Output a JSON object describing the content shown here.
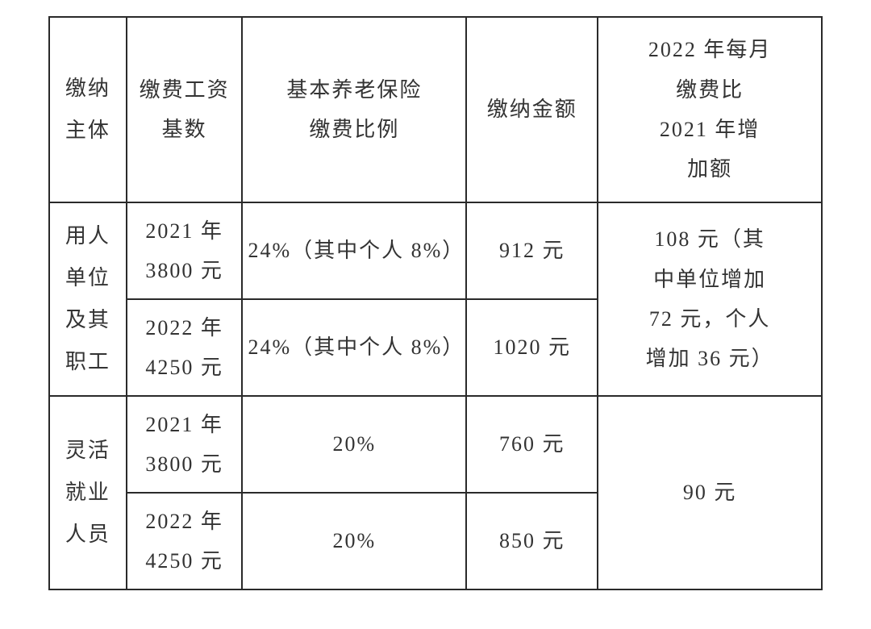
{
  "table": {
    "type": "table",
    "background_color": "#ffffff",
    "border_color": "#2a2a2a",
    "text_color": "#333333",
    "font_family": "SimSun",
    "font_size_pt": 20,
    "columns": [
      {
        "key": "subject",
        "label": "缴纳主体",
        "width_pct": 10
      },
      {
        "key": "base",
        "label": "缴费工资基数",
        "width_pct": 15
      },
      {
        "key": "rate",
        "label": "基本养老保险缴费比例",
        "width_pct": 29
      },
      {
        "key": "amount",
        "label": "缴纳金额",
        "width_pct": 17
      },
      {
        "key": "increase",
        "label": "2022 年每月缴费比2021 年增加额",
        "width_pct": 29
      }
    ],
    "headers": {
      "subject": "缴纳\n主体",
      "base": "缴费工资\n基数",
      "rate": "基本养老保险\n缴费比例",
      "amount": "缴纳金额",
      "increase": "2022 年每月\n缴费比\n2021 年增\n加额"
    },
    "groups": [
      {
        "subject": "用人\n单位\n及其\n职工",
        "rows": [
          {
            "base": "2021 年\n3800 元",
            "rate": "24%（其中个人 8%）",
            "amount": "912 元"
          },
          {
            "base": "2022 年\n4250 元",
            "rate": "24%（其中个人 8%）",
            "amount": "1020 元"
          }
        ],
        "increase": "108 元（其\n中单位增加\n72 元，个人\n增加 36 元）"
      },
      {
        "subject": "灵活\n就业\n人员",
        "rows": [
          {
            "base": "2021 年\n3800 元",
            "rate": "20%",
            "amount": "760 元"
          },
          {
            "base": "2022 年\n4250 元",
            "rate": "20%",
            "amount": "850 元"
          }
        ],
        "increase": "90 元"
      }
    ]
  }
}
